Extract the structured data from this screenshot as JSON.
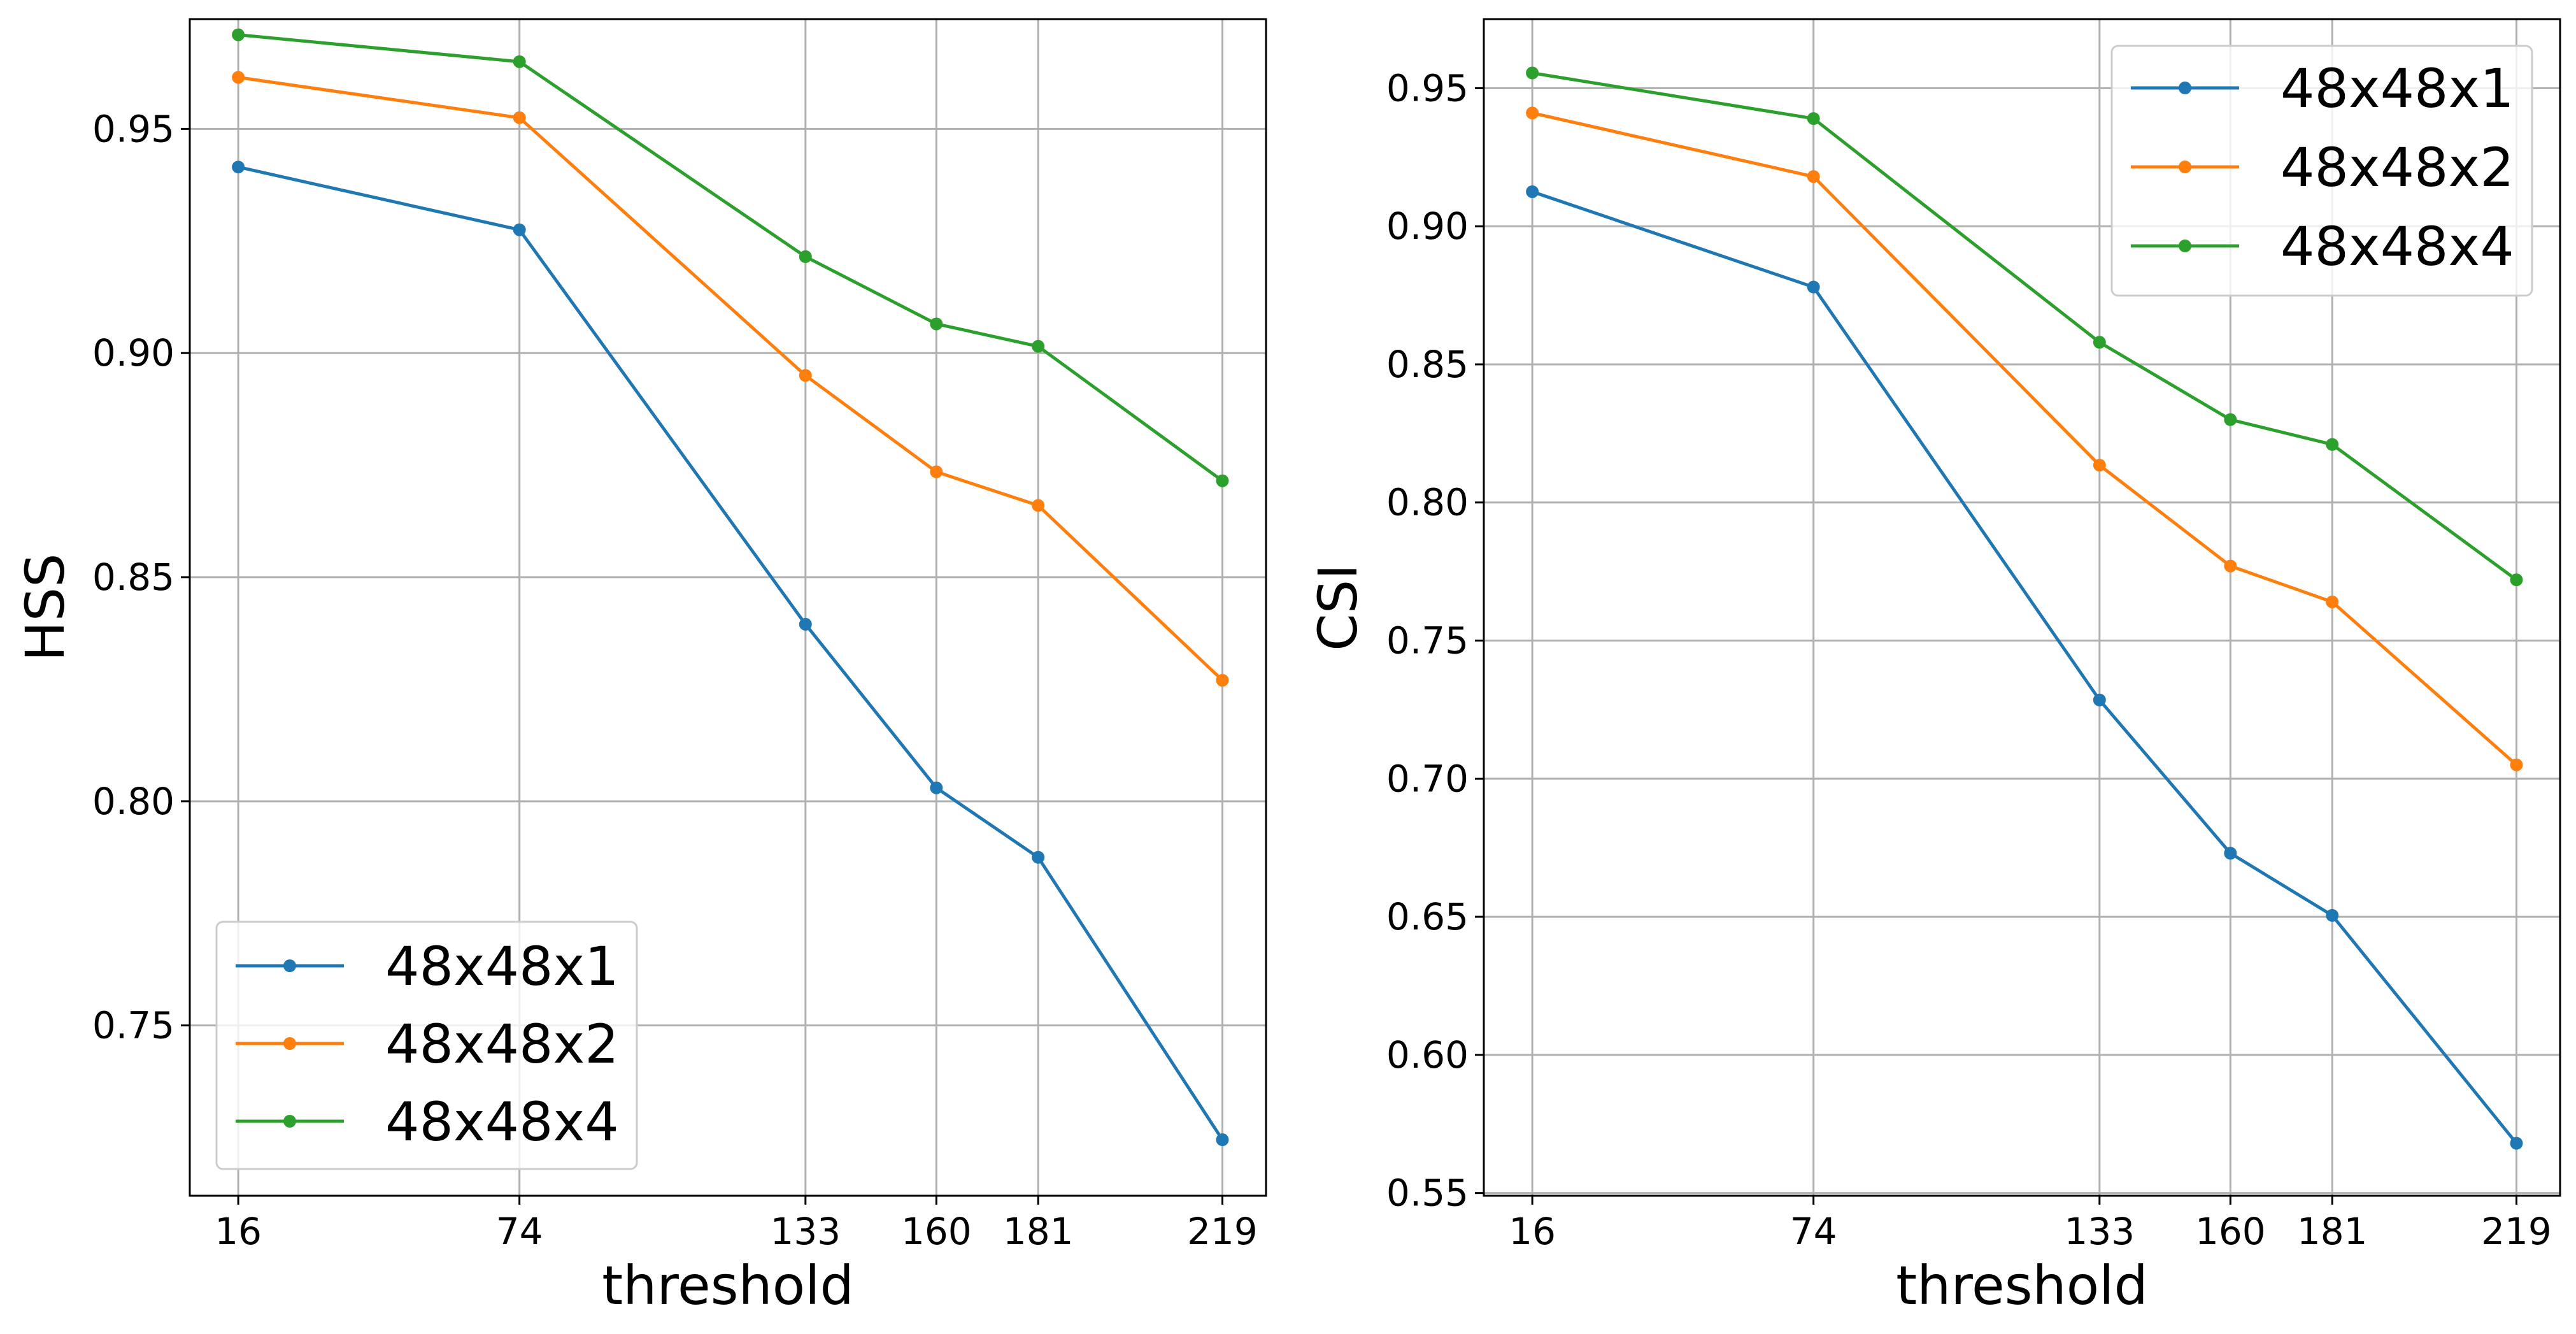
{
  "chart_data": [
    {
      "type": "line",
      "x": [
        16,
        74,
        133,
        160,
        181,
        219
      ],
      "xticks": [
        "16",
        "74",
        "133",
        "160",
        "181",
        "219"
      ],
      "xlim": [
        6,
        228
      ],
      "ylim": [
        0.712,
        0.9745
      ],
      "yticks": [
        0.75,
        0.8,
        0.85,
        0.9,
        0.95
      ],
      "ytick_labels": [
        "0.75",
        "0.80",
        "0.85",
        "0.90",
        "0.95"
      ],
      "xlabel": "threshold",
      "ylabel": "HSS",
      "grid": true,
      "legend_position": "lower-left",
      "series": [
        {
          "name": "48x48x1",
          "color": "#1f77b4",
          "values": [
            0.9415,
            0.9275,
            0.8395,
            0.803,
            0.7875,
            0.7245
          ]
        },
        {
          "name": "48x48x2",
          "color": "#ff7f0e",
          "values": [
            0.9615,
            0.9525,
            0.895,
            0.8735,
            0.866,
            0.827
          ]
        },
        {
          "name": "48x48x4",
          "color": "#2ca02c",
          "values": [
            0.971,
            0.965,
            0.9215,
            0.9065,
            0.9015,
            0.8715
          ]
        }
      ]
    },
    {
      "type": "line",
      "x": [
        16,
        74,
        133,
        160,
        181,
        219
      ],
      "xticks": [
        "16",
        "74",
        "133",
        "160",
        "181",
        "219"
      ],
      "xlim": [
        6,
        228
      ],
      "ylim": [
        0.549,
        0.975
      ],
      "yticks": [
        0.55,
        0.6,
        0.65,
        0.7,
        0.75,
        0.8,
        0.85,
        0.9,
        0.95
      ],
      "ytick_labels": [
        "0.55",
        "0.60",
        "0.65",
        "0.70",
        "0.75",
        "0.80",
        "0.85",
        "0.90",
        "0.95"
      ],
      "xlabel": "threshold",
      "ylabel": "CSI",
      "grid": true,
      "legend_position": "upper-right",
      "series": [
        {
          "name": "48x48x1",
          "color": "#1f77b4",
          "values": [
            0.9125,
            0.878,
            0.7285,
            0.673,
            0.6505,
            0.568
          ]
        },
        {
          "name": "48x48x2",
          "color": "#ff7f0e",
          "values": [
            0.941,
            0.918,
            0.8135,
            0.777,
            0.764,
            0.705
          ]
        },
        {
          "name": "48x48x4",
          "color": "#2ca02c",
          "values": [
            0.9555,
            0.939,
            0.858,
            0.83,
            0.821,
            0.772
          ]
        }
      ]
    }
  ]
}
